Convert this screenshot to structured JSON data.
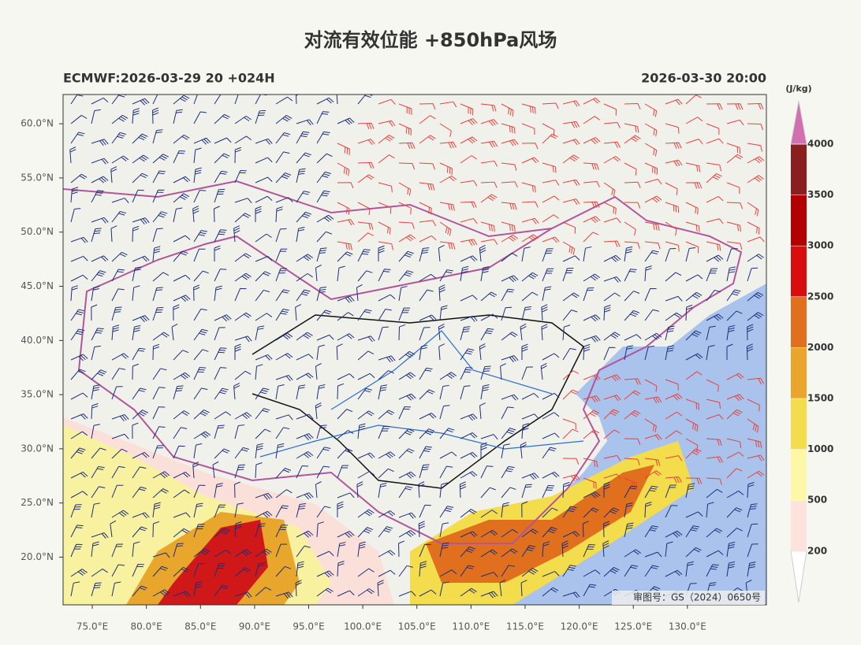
{
  "title": "对流有效位能 +850hPa风场",
  "header_left": "ECMWF:2026-03-29 20 +024H",
  "header_right": "2026-03-30 20:00",
  "map": {
    "lonlim": [
      72.3,
      137.3
    ],
    "latlim": [
      15.6,
      62.7
    ],
    "lon_ticks": [
      {
        "value": 75,
        "label": "75.0°E"
      },
      {
        "value": 80,
        "label": "80.0°E"
      },
      {
        "value": 85,
        "label": "85.0°E"
      },
      {
        "value": 90,
        "label": "90.0°E"
      },
      {
        "value": 95,
        "label": "95.0°E"
      },
      {
        "value": 100,
        "label": "100.0°E"
      },
      {
        "value": 105,
        "label": "105.0°E"
      },
      {
        "value": 110,
        "label": "110.0°E"
      },
      {
        "value": 115,
        "label": "115.0°E"
      },
      {
        "value": 120,
        "label": "120.0°E"
      },
      {
        "value": 125,
        "label": "125.0°E"
      },
      {
        "value": 130,
        "label": "130.0°E"
      }
    ],
    "lat_ticks": [
      {
        "value": 20,
        "label": "20.0°N"
      },
      {
        "value": 25,
        "label": "25.0°N"
      },
      {
        "value": 30,
        "label": "30.0°N"
      },
      {
        "value": 35,
        "label": "35.0°N"
      },
      {
        "value": 40,
        "label": "40.0°N"
      },
      {
        "value": 45,
        "label": "45.0°N"
      },
      {
        "value": 50,
        "label": "50.0°N"
      },
      {
        "value": 55,
        "label": "55.0°N"
      },
      {
        "value": 60,
        "label": "60.0°N"
      }
    ]
  },
  "watermark": "审图号：GS（2024）0650号",
  "colorbar": {
    "unit": "(J/kg)",
    "levels": [
      200,
      500,
      1000,
      1500,
      2000,
      2500,
      3000,
      3500,
      4000
    ],
    "colors": [
      "#ffffff",
      "#fde3dc",
      "#fcf8a6",
      "#f4dd4c",
      "#eaa62c",
      "#e0701e",
      "#d80e0e",
      "#b30000",
      "#8a1f1f",
      "#d070b0"
    ]
  }
}
